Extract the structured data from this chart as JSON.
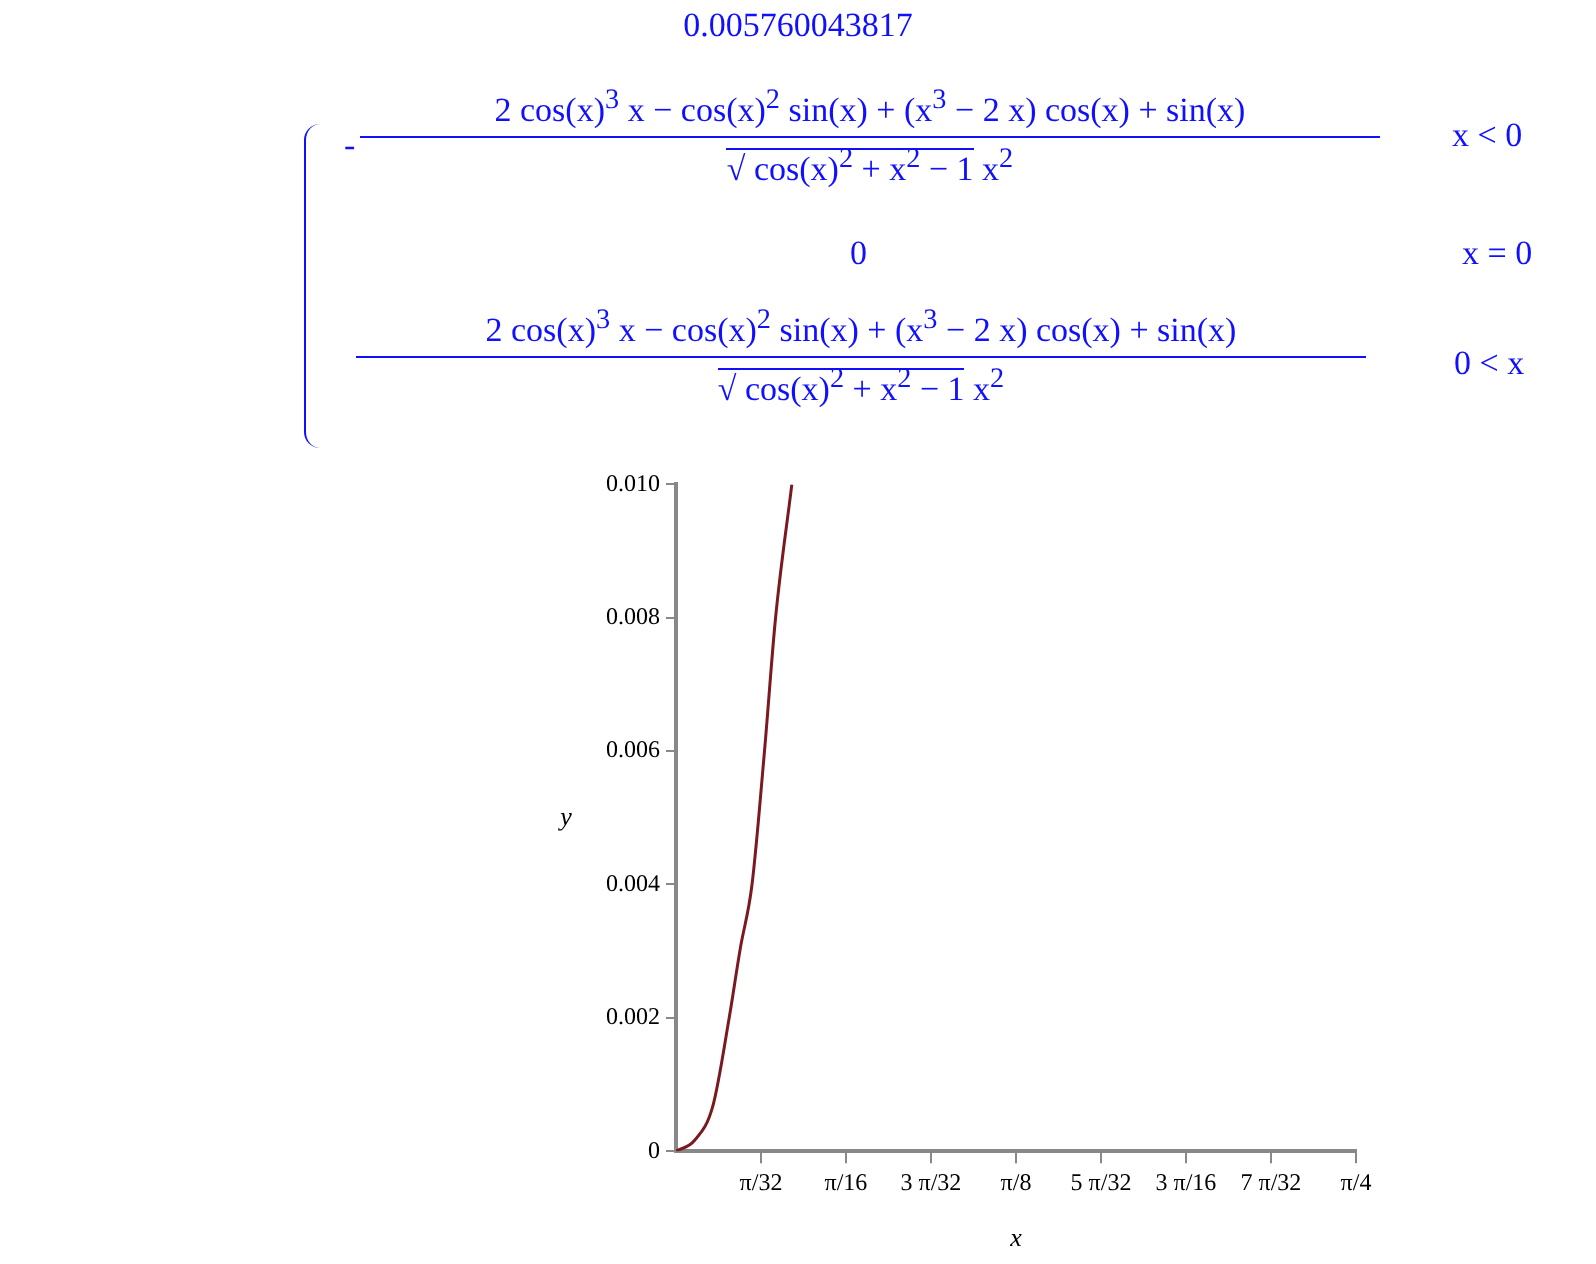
{
  "chart_data": {
    "type": "line",
    "xlabel": "x",
    "ylabel": "y",
    "annotations": [
      "0.005760043817",
      "-",
      "2 cos(x)$^{3}$ x − cos(x)$^{2}$ sin(x) + (x$^{3}$ − 2 x) cos(x) + sin(x)",
      "√ cos(x)$^{2}$ + x$^{2}$ − 1",
      "x$^{2}$",
      "x < 0",
      "0",
      "x = 0",
      "2 cos(x)$^{3}$ x − cos(x)$^{2}$ sin(x) + (x$^{3}$ − 2 x) cos(x) + sin(x)",
      "√ cos(x)$^{2}$ + x$^{2}$ − 1",
      "x$^{2}$",
      "0 < x"
    ],
    "x": [
      0,
      0.0213,
      0.0426,
      0.0613,
      0.0741,
      0.0878,
      0.1022,
      0.115,
      0.1338
    ],
    "series": [
      {
        "color": "#7b1a1e",
        "values": [
          0,
          0.00016,
          0.00068,
          0.00199,
          0.00303,
          0.004,
          0.006,
          0.008,
          0.01
        ]
      }
    ],
    "xlim": [
      0,
      0.7854
    ],
    "xticks": [
      {
        "value": 0.0982,
        "label": "π/32"
      },
      {
        "value": 0.1963,
        "label": "π/16"
      },
      {
        "value": 0.2945,
        "label": "3 π/32"
      },
      {
        "value": 0.3927,
        "label": "π/8"
      },
      {
        "value": 0.4909,
        "label": "5 π/32"
      },
      {
        "value": 0.589,
        "label": "3 π/16"
      },
      {
        "value": 0.6872,
        "label": "7 π/32"
      },
      {
        "value": 0.7854,
        "label": "π/4"
      }
    ],
    "ylim": [
      0,
      0.01
    ],
    "yticks": [
      0,
      0.002,
      0.004,
      0.006,
      0.008,
      {
        "value": 0.01,
        "label": "0.010"
      }
    ],
    "grid": false,
    "legend": false,
    "marker": "none",
    "line_style": "solid"
  }
}
